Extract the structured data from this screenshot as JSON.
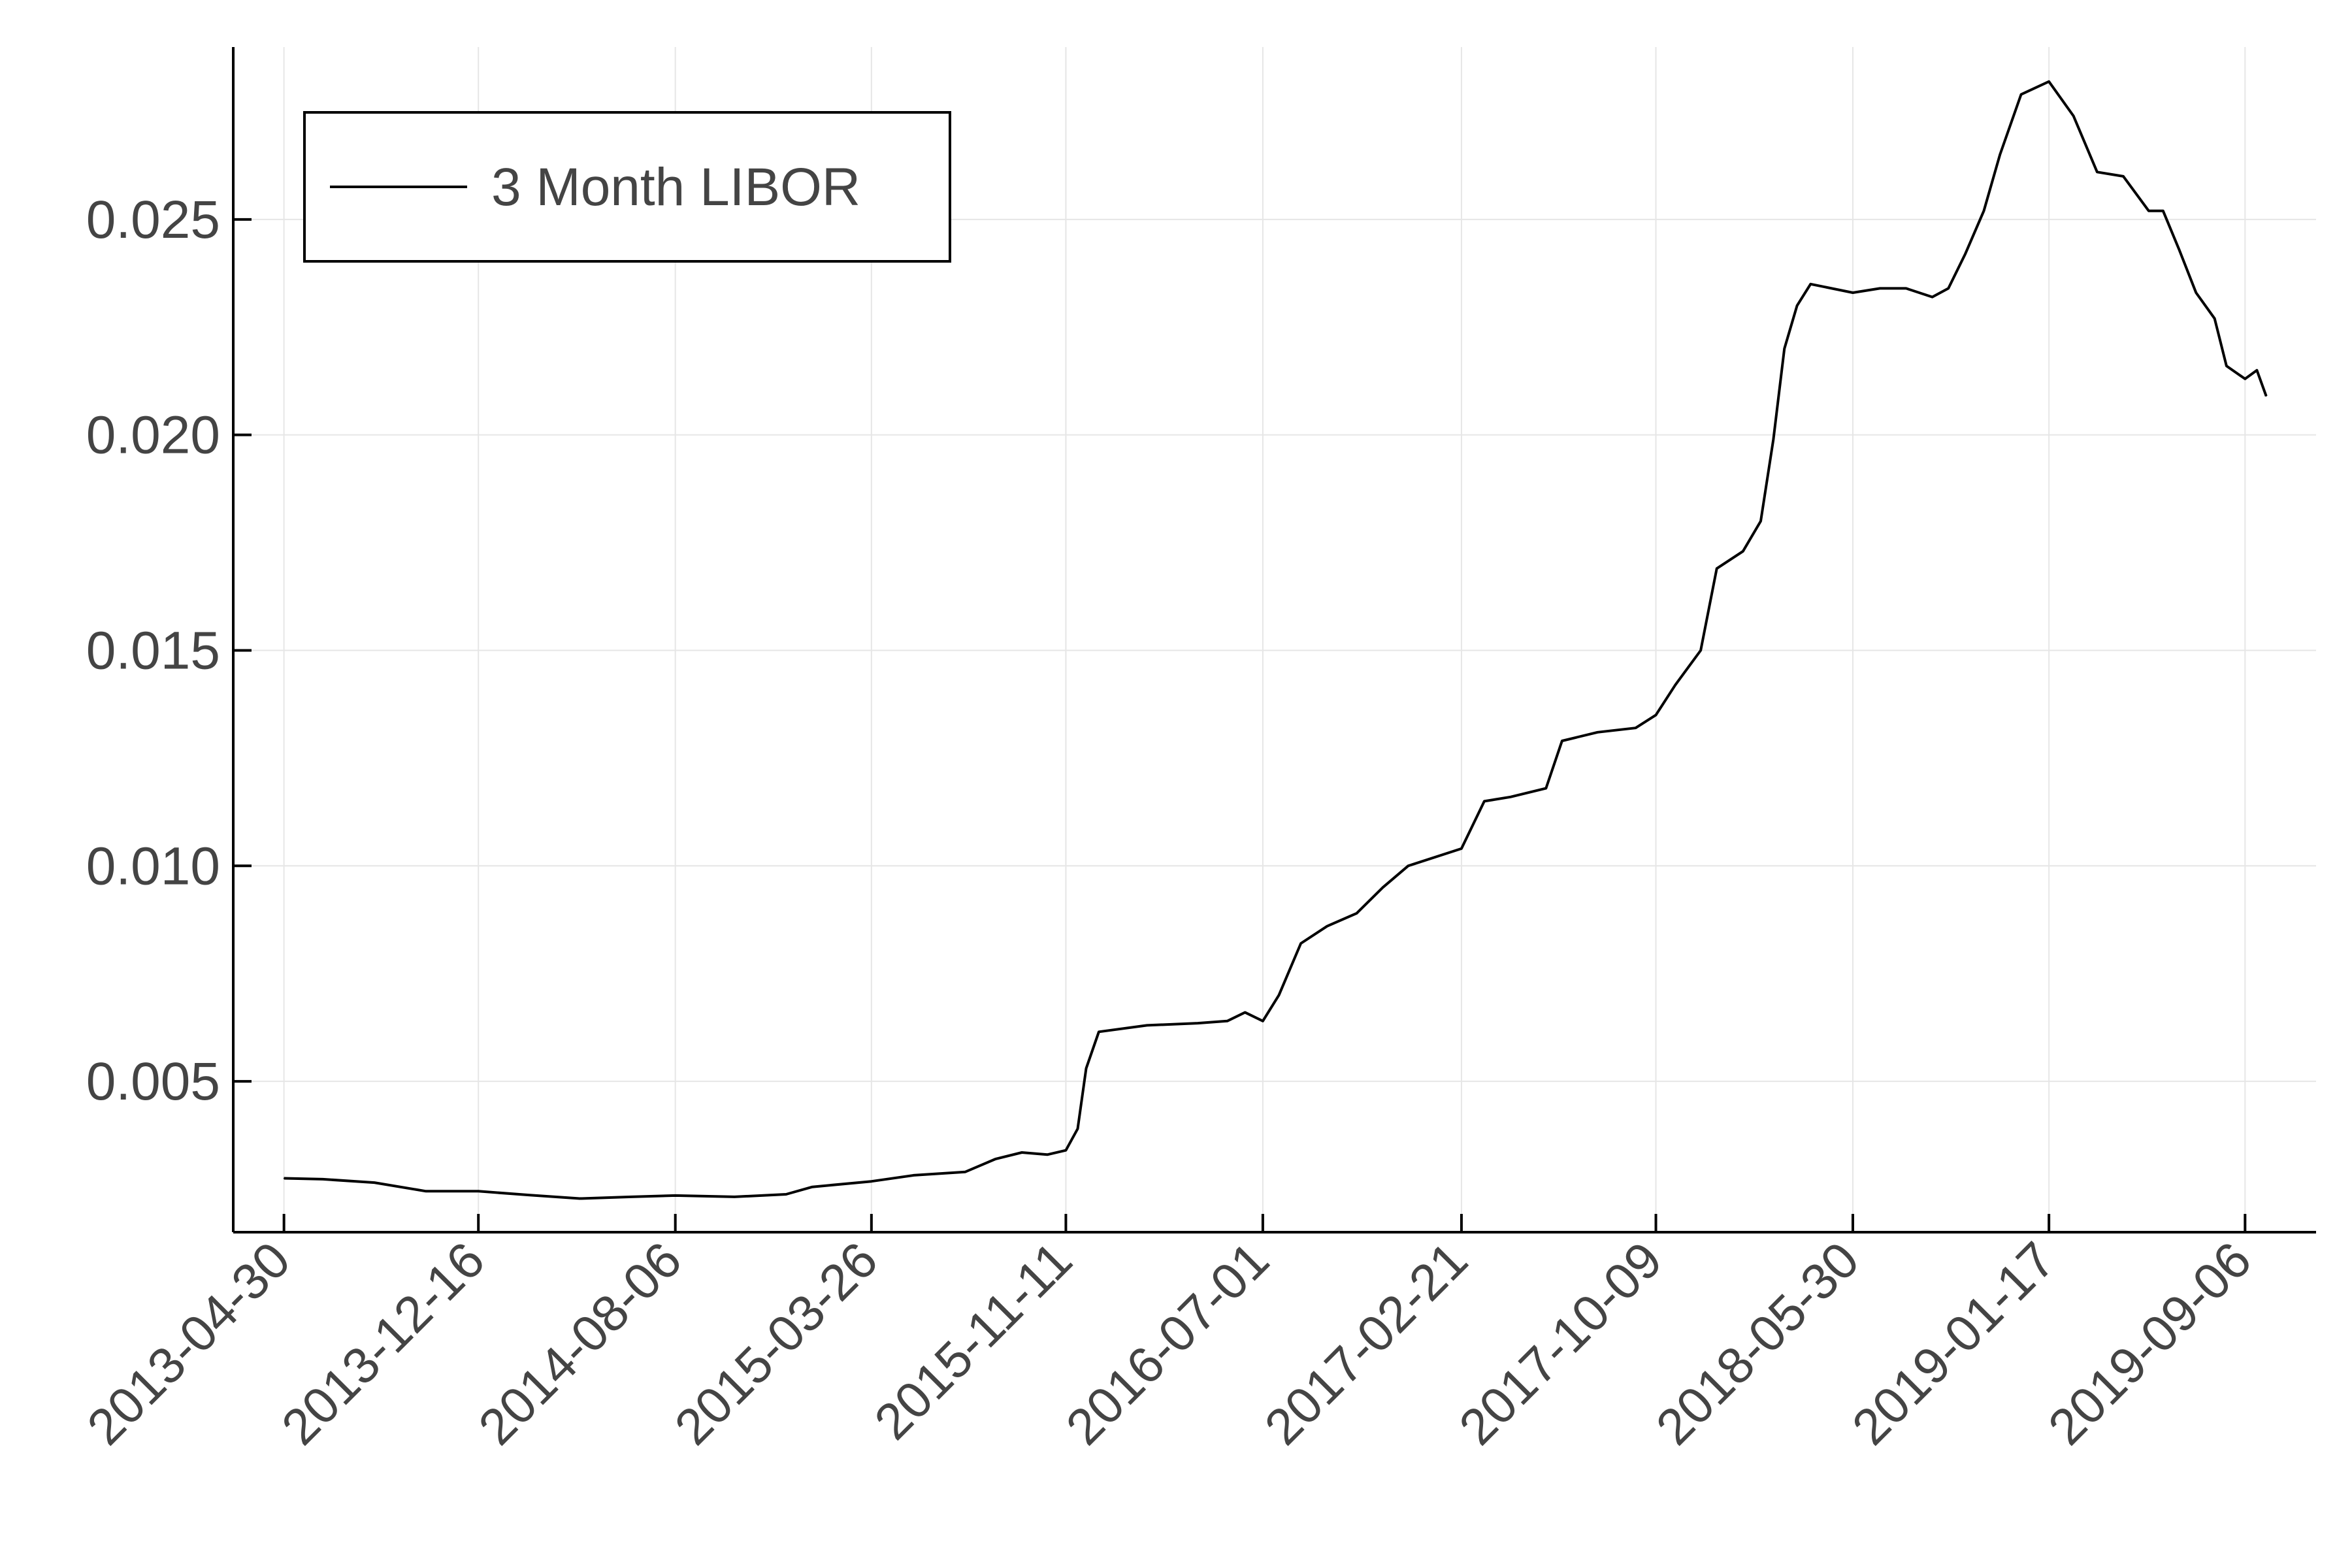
{
  "chart_data": {
    "type": "line",
    "title": "",
    "xlabel": "",
    "ylabel": "",
    "grid": true,
    "legend": {
      "placement": "top-left",
      "entries": [
        "3 Month LIBOR"
      ]
    },
    "xlim": [
      "2013-03-01",
      "2019-11-29"
    ],
    "ylim": [
      0.0015,
      0.029
    ],
    "x_ticks": [
      "2013-04-30",
      "2013-12-16",
      "2014-08-06",
      "2015-03-26",
      "2015-11-11",
      "2016-07-01",
      "2017-02-21",
      "2017-10-09",
      "2018-05-30",
      "2019-01-17",
      "2019-09-06"
    ],
    "y_ticks": [
      0.005,
      0.01,
      0.015,
      0.02,
      0.025
    ],
    "y_tick_labels": [
      "0.005",
      "0.010",
      "0.015",
      "0.020",
      "0.025"
    ],
    "series": [
      {
        "name": "3 Month LIBOR",
        "color": "#000000",
        "x": [
          "2013-04-30",
          "2013-06-15",
          "2013-08-15",
          "2013-10-15",
          "2013-12-16",
          "2014-02-15",
          "2014-04-15",
          "2014-06-15",
          "2014-08-06",
          "2014-10-15",
          "2014-12-15",
          "2015-01-15",
          "2015-03-26",
          "2015-05-15",
          "2015-07-15",
          "2015-08-20",
          "2015-09-20",
          "2015-10-20",
          "2015-11-11",
          "2015-11-25",
          "2015-12-05",
          "2015-12-20",
          "2016-02-15",
          "2016-04-15",
          "2016-05-20",
          "2016-06-10",
          "2016-07-01",
          "2016-07-20",
          "2016-08-15",
          "2016-09-15",
          "2016-10-20",
          "2016-11-20",
          "2016-12-20",
          "2017-02-21",
          "2017-03-20",
          "2017-04-20",
          "2017-06-01",
          "2017-06-20",
          "2017-08-01",
          "2017-09-15",
          "2017-10-09",
          "2017-11-01",
          "2017-12-01",
          "2017-12-20",
          "2018-01-20",
          "2018-02-10",
          "2018-02-25",
          "2018-03-10",
          "2018-03-25",
          "2018-04-10",
          "2018-05-30",
          "2018-07-01",
          "2018-08-01",
          "2018-09-01",
          "2018-09-20",
          "2018-10-10",
          "2018-11-01",
          "2018-11-20",
          "2018-12-15",
          "2019-01-17",
          "2019-02-15",
          "2019-03-15",
          "2019-04-15",
          "2019-05-15",
          "2019-06-01",
          "2019-06-20",
          "2019-07-10",
          "2019-08-01",
          "2019-08-15",
          "2019-09-06",
          "2019-09-20",
          "2019-10-01"
        ],
        "values": [
          0.00275,
          0.00273,
          0.00265,
          0.00245,
          0.00245,
          0.00236,
          0.00228,
          0.00232,
          0.00235,
          0.00232,
          0.00238,
          0.00255,
          0.00268,
          0.00282,
          0.0029,
          0.0032,
          0.00335,
          0.0033,
          0.0034,
          0.0039,
          0.0053,
          0.00615,
          0.0063,
          0.00635,
          0.0064,
          0.0066,
          0.0064,
          0.007,
          0.0082,
          0.0086,
          0.0089,
          0.0095,
          0.01,
          0.0104,
          0.0115,
          0.0116,
          0.0118,
          0.0129,
          0.0131,
          0.0132,
          0.0135,
          0.0142,
          0.015,
          0.0169,
          0.0173,
          0.018,
          0.0199,
          0.022,
          0.023,
          0.0235,
          0.0233,
          0.0234,
          0.0234,
          0.0232,
          0.0234,
          0.0242,
          0.0252,
          0.0265,
          0.0279,
          0.0282,
          0.0274,
          0.0261,
          0.026,
          0.0252,
          0.0252,
          0.0243,
          0.0233,
          0.0227,
          0.0216,
          0.0213,
          0.0215,
          0.0209
        ]
      }
    ]
  }
}
